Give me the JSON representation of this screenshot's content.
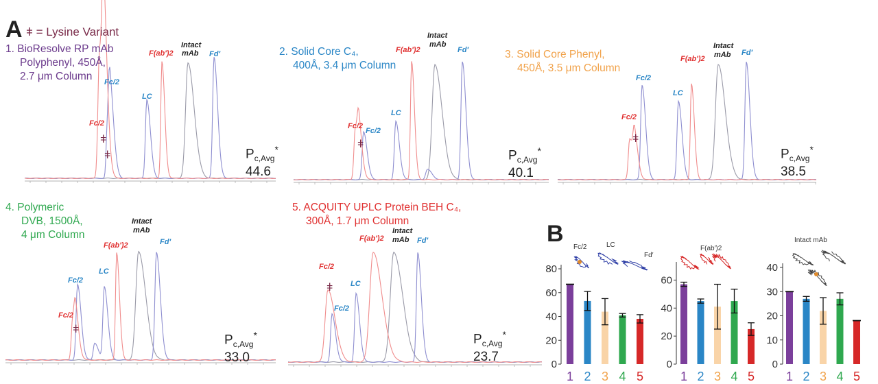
{
  "panel_labels": {
    "a": "A",
    "b": "B"
  },
  "legend": "ǂ = Lysine Variant",
  "columns": [
    {
      "id": 1,
      "lines": [
        "1. BioResolve RP mAb",
        "Polyphenyl, 450Å,",
        "2.7 μm Column"
      ],
      "color": "#6b3a8c",
      "pc_value": "44.6"
    },
    {
      "id": 2,
      "lines": [
        "2. Solid Core C₄,",
        "400Å, 3.4 μm Column"
      ],
      "color": "#2a86c6",
      "pc_value": "40.1"
    },
    {
      "id": 3,
      "lines": [
        "3. Solid Core Phenyl,",
        "450Å, 3.5 μm Column"
      ],
      "color": "#f1a24a",
      "pc_value": "38.5"
    },
    {
      "id": 4,
      "lines": [
        "4.  Polymeric",
        "DVB, 1500Å,",
        "4 μm Column"
      ],
      "color": "#2fa84f",
      "pc_value": "33.0"
    },
    {
      "id": 5,
      "lines": [
        "5. ACQUITY UPLC Protein BEH C₄,",
        "300Å, 1.7 μm Column"
      ],
      "color": "#e03030",
      "pc_value": "23.7"
    }
  ],
  "pc_label": {
    "main": "P",
    "sub": "c,Avg",
    "sup": "*"
  },
  "peak_labels": {
    "fc2": "Fc/2",
    "lc": "LC",
    "fab2": "F(ab′)2",
    "intact_1": "Intact",
    "intact_2": "mAb",
    "fd": "Fd′",
    "lysine": "ǂ"
  },
  "peak_colors": {
    "fc2_red": "#e03030",
    "fc2_blue": "#2a86c6",
    "lc": "#2a86c6",
    "fab2": "#e03030",
    "intact": "#222222",
    "fd": "#2a86c6"
  },
  "trace_colors": {
    "red": "#f08c8c",
    "blue": "#8e8ed0",
    "gray": "#9a9aa8"
  },
  "structure_labels": {
    "fc2": "Fc/2",
    "lc": "LC",
    "fd": "Fd′",
    "fab2": "F(ab′)2",
    "intact": "Intact mAb"
  },
  "chart_data": [
    {
      "type": "bar",
      "title": "",
      "structure_label": "Fc/2, LC, Fd′",
      "categories": [
        "1",
        "2",
        "3",
        "4",
        "5"
      ],
      "values": [
        67,
        53,
        44,
        41,
        38
      ],
      "error": [
        0,
        8,
        11,
        1.5,
        3.5
      ],
      "ylim": [
        0,
        80
      ],
      "yticks": [
        0,
        20,
        40,
        60,
        80
      ],
      "bar_colors": [
        "#7b3f9b",
        "#2a86c6",
        "#f9d4a8",
        "#2fa84f",
        "#d62828"
      ]
    },
    {
      "type": "bar",
      "title": "",
      "structure_label": "F(ab′)2",
      "categories": [
        "1",
        "2",
        "3",
        "4",
        "5"
      ],
      "values": [
        57,
        45,
        41,
        45,
        25
      ],
      "error": [
        1.5,
        1.5,
        16,
        8.5,
        4.5
      ],
      "ylim": [
        0,
        70
      ],
      "yticks": [
        0,
        20,
        40,
        60
      ],
      "bar_colors": [
        "#7b3f9b",
        "#2a86c6",
        "#f9d4a8",
        "#2fa84f",
        "#d62828"
      ]
    },
    {
      "type": "bar",
      "title": "",
      "structure_label": "Intact mAb",
      "categories": [
        "1",
        "2",
        "3",
        "4",
        "5"
      ],
      "values": [
        30,
        27,
        22,
        27,
        18
      ],
      "error": [
        0,
        1,
        5.5,
        2.5,
        0.3
      ],
      "ylim": [
        0,
        40
      ],
      "yticks": [
        0,
        10,
        20,
        30,
        40
      ],
      "bar_colors": [
        "#7b3f9b",
        "#2a86c6",
        "#f9d4a8",
        "#2fa84f",
        "#d62828"
      ]
    }
  ]
}
